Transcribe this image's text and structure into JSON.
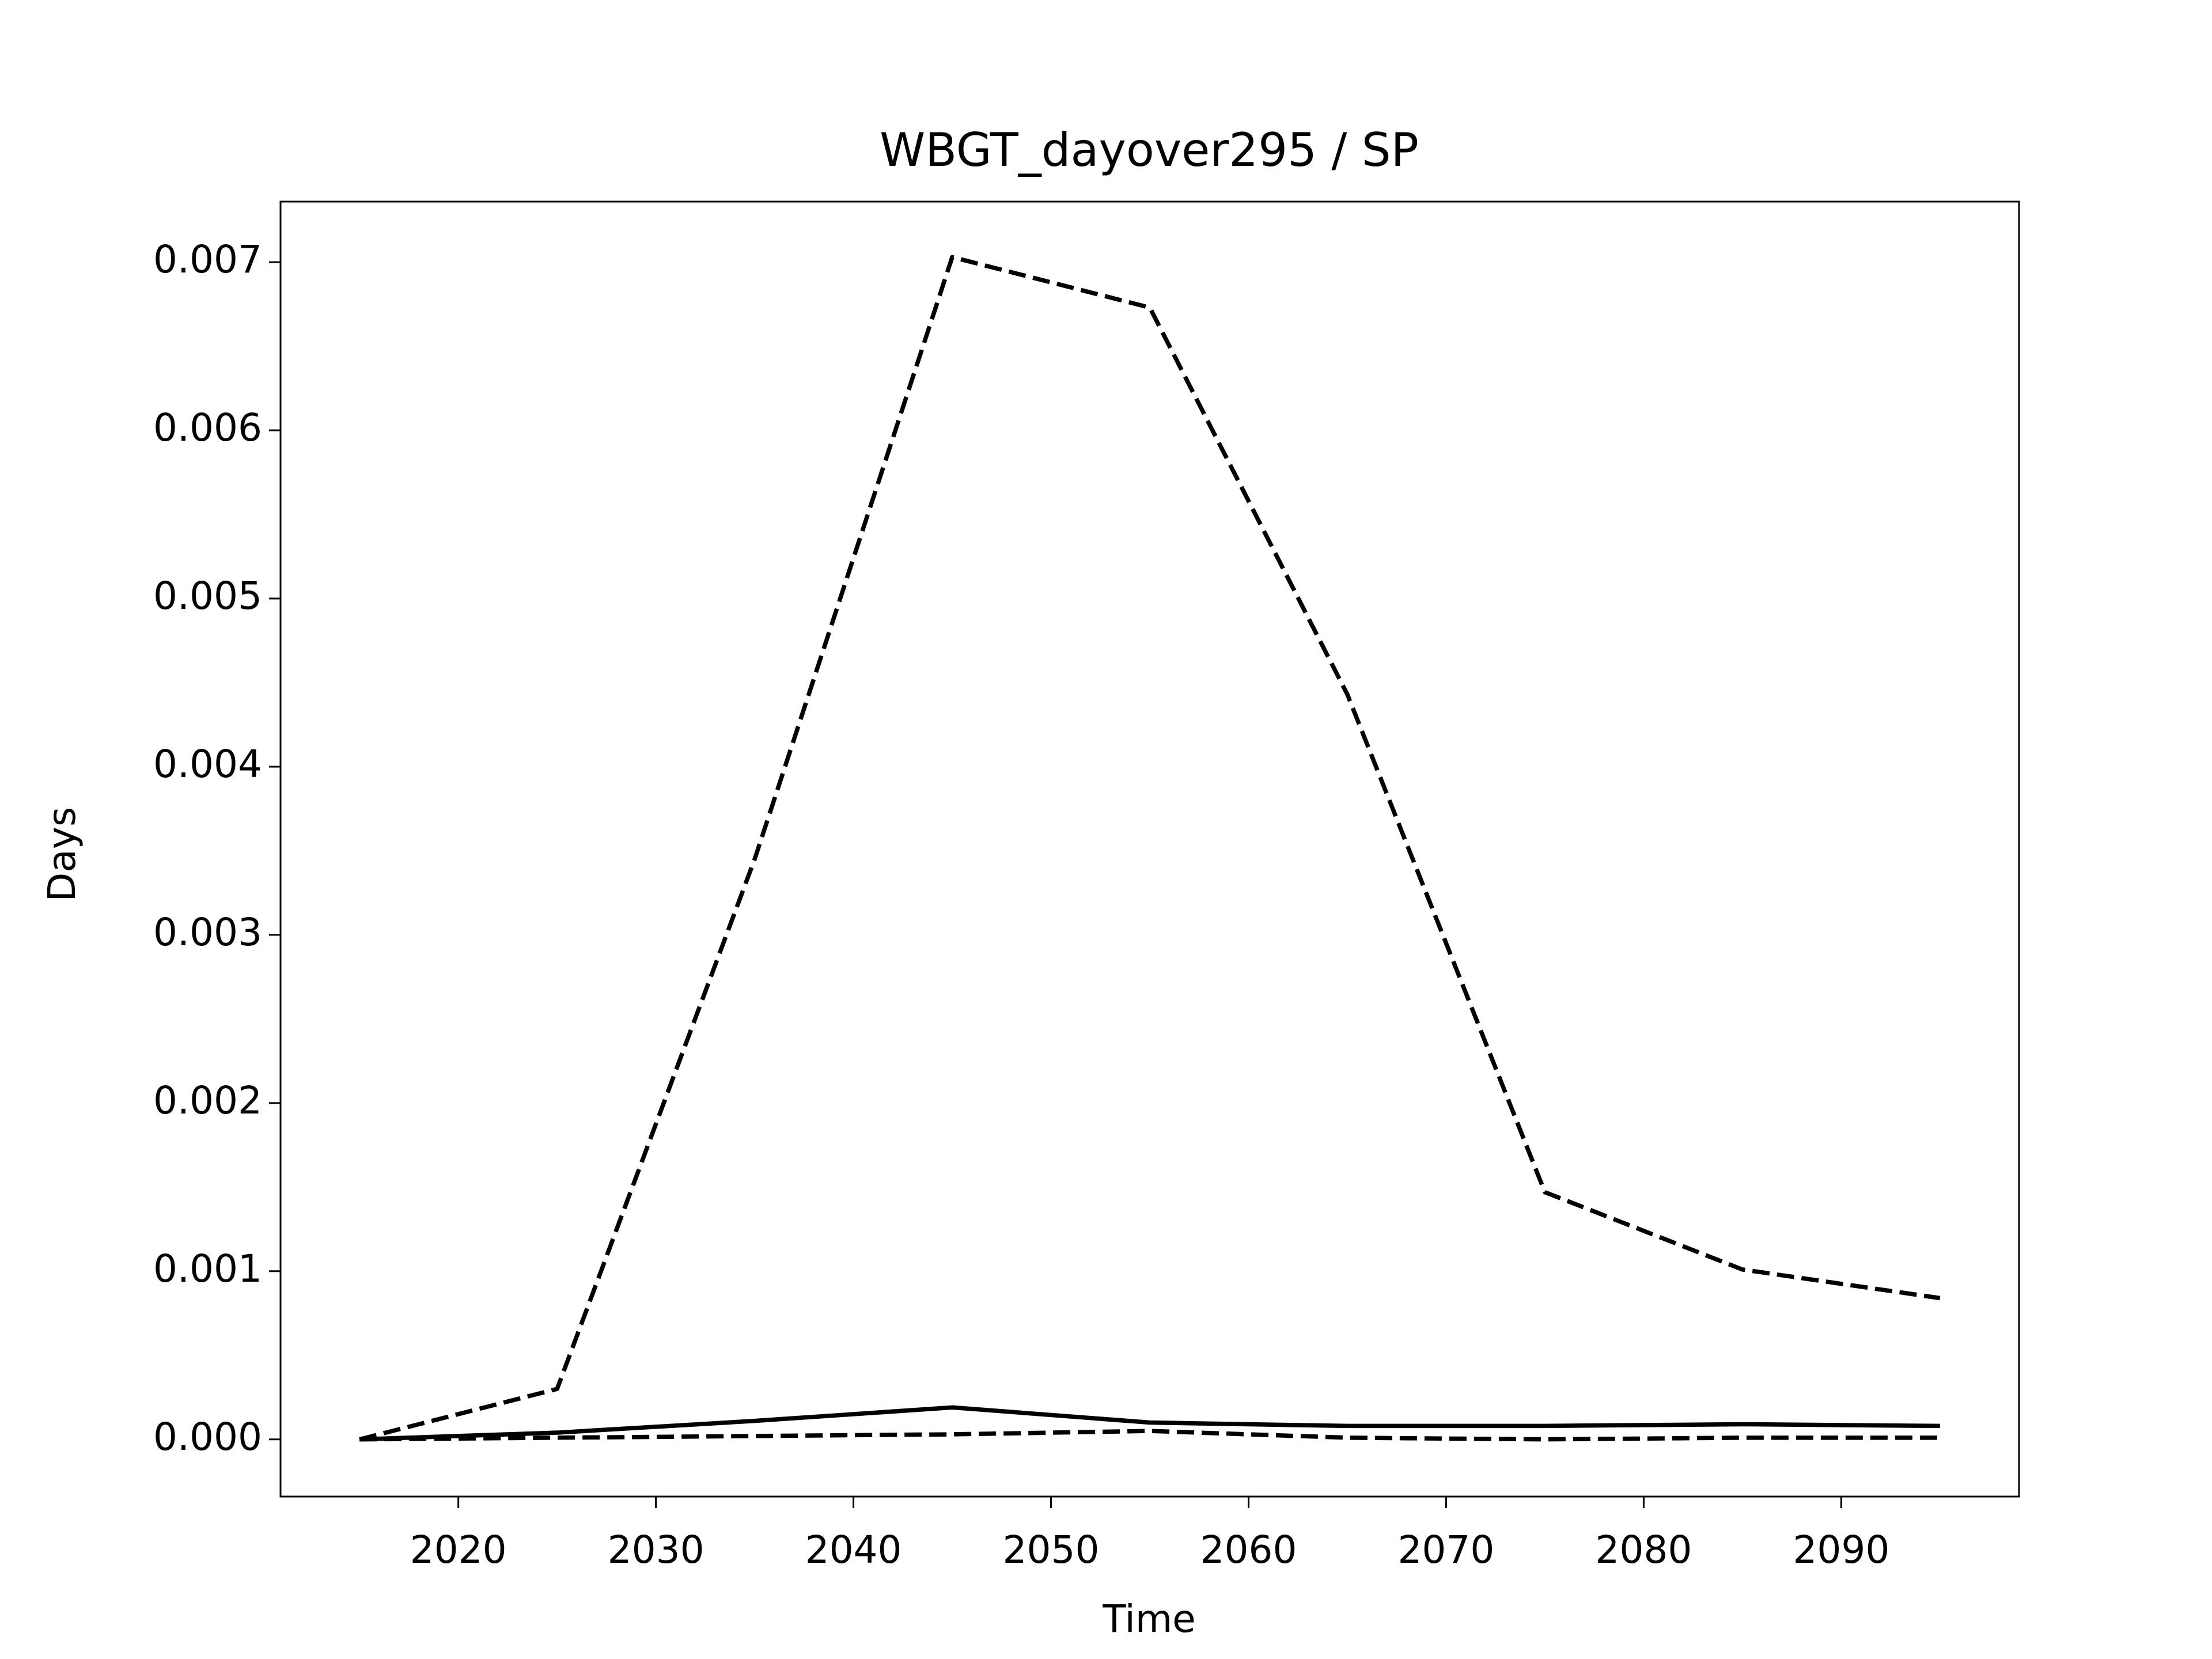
{
  "chart_data": {
    "type": "line",
    "title": "WBGT_dayover295 / SP",
    "x_label": "Time",
    "y_label": "Days",
    "x": [
      2015,
      2025,
      2035,
      2045,
      2055,
      2065,
      2075,
      2085,
      2095
    ],
    "series": [
      {
        "color": "#000000",
        "linestyle": "dashed",
        "values": [
          0,
          0.0003,
          0.00345,
          0.00703,
          0.00673,
          0.00443,
          0.00147,
          0.00101,
          0.00084
        ]
      },
      {
        "color": "#000000",
        "linestyle": "solid",
        "values": [
          0,
          4e-05,
          0.00011,
          0.00019,
          0.0001,
          8e-05,
          8e-05,
          9e-05,
          8e-05
        ]
      },
      {
        "color": "#000000",
        "linestyle": "dashed",
        "values": [
          0,
          1e-05,
          2e-05,
          3e-05,
          5e-05,
          1e-05,
          0,
          1e-05,
          1e-05
        ]
      }
    ],
    "xlim": [
      2011,
      2099
    ],
    "ylim": [
      -0.00034,
      0.00736
    ],
    "xticks": [
      2020,
      2030,
      2040,
      2050,
      2060,
      2070,
      2080,
      2090
    ],
    "yticks": [
      {
        "value": 0,
        "label": "0.000"
      },
      0.001,
      0.002,
      0.003,
      0.004,
      0.005,
      0.006,
      0.007
    ],
    "grid": false
  }
}
